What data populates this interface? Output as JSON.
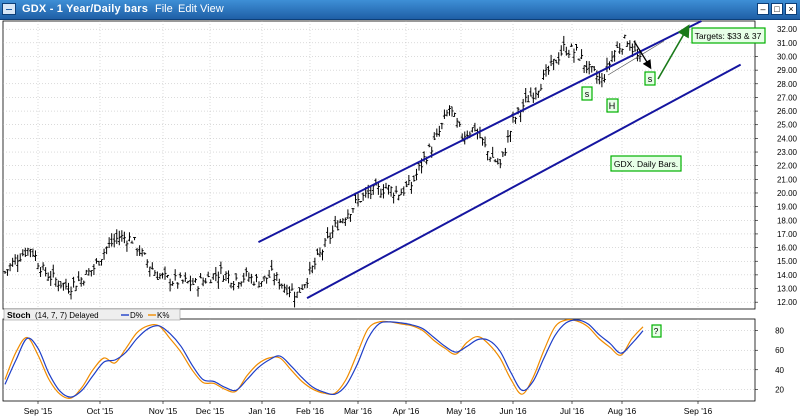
{
  "window": {
    "title": "GDX - 1 Year/Daily bars",
    "menu": {
      "file": "File",
      "edit": "Edit",
      "view": "View"
    }
  },
  "stoch_header": {
    "name": "Stoch",
    "params": "(14, 7, 7) Delayed",
    "d_label": "D%",
    "k_label": "K%",
    "d_color": "#1f3fc8",
    "k_color": "#f08c00"
  },
  "annotations": {
    "targets": "Targets: $33 & 37",
    "gdx_daily": "GDX. Daily Bars.",
    "s": "s",
    "h": "H",
    "q": "?"
  },
  "colors": {
    "channel": "#1515a0",
    "arrow": "#1a7a1a",
    "box_border": "#00b000",
    "box_fill": "#e7ffe7",
    "bars": "#000000",
    "grid": "#b7b7b7"
  },
  "chart_data": [
    {
      "type": "ohlc",
      "title": "GDX - 1 Year/Daily bars",
      "x_start_date": "2015-08-20",
      "xticks": [
        "Sep '15",
        "Oct '15",
        "Nov '15",
        "Dec '15",
        "Jan '16",
        "Feb '16",
        "Mar '16",
        "Apr '16",
        "May '16",
        "Jun '16",
        "Jul '16",
        "Aug '16",
        "Sep '16"
      ],
      "ylim": [
        11.5,
        32.6
      ],
      "yticks": [
        "12.00",
        "13.00",
        "14.00",
        "15.00",
        "16.00",
        "17.00",
        "18.00",
        "19.00",
        "20.00",
        "21.00",
        "22.00",
        "23.00",
        "24.00",
        "25.00",
        "26.00",
        "27.00",
        "28.00",
        "29.00",
        "30.00",
        "31.00",
        "32.00"
      ],
      "grid": true,
      "close_series_weekly": [
        14.2,
        15.3,
        16.0,
        14.3,
        13.6,
        13.1,
        13.7,
        14.5,
        16.0,
        16.8,
        16.6,
        15.2,
        14.0,
        13.6,
        13.5,
        13.3,
        13.8,
        14.2,
        13.7,
        13.9,
        13.5,
        14.0,
        13.2,
        12.6,
        14.1,
        15.8,
        17.5,
        18.6,
        19.6,
        20.1,
        20.4,
        20.0,
        20.6,
        22.5,
        24.0,
        26.2,
        24.2,
        24.8,
        23.0,
        22.0,
        25.2,
        26.7,
        27.8,
        29.2,
        30.6,
        30.3,
        29.0,
        28.2,
        30.4,
        31.3,
        29.6
      ],
      "channel_upper_ends": [
        [
          "2016-01-01",
          16.4
        ],
        [
          "2016-08-25",
          32.6
        ]
      ],
      "channel_lower_ends": [
        [
          "2016-01-27",
          12.3
        ],
        [
          "2016-09-15",
          29.4
        ]
      ],
      "target_arrow": [
        [
          "2016-08-27",
          29.3
        ],
        [
          "2016-09-10",
          32.8
        ]
      ]
    },
    {
      "type": "line",
      "title": "Stoch (14, 7, 7) Delayed",
      "ylim": [
        8,
        92
      ],
      "yticks": [
        "20",
        "40",
        "60",
        "80"
      ],
      "grid": true,
      "series": [
        {
          "name": "D%",
          "color": "#1f3fc8",
          "values": [
            25,
            50,
            72,
            62,
            36,
            18,
            12,
            19,
            34,
            48,
            50,
            58,
            72,
            82,
            85,
            77,
            64,
            45,
            30,
            28,
            22,
            19,
            30,
            42,
            50,
            54,
            44,
            32,
            22,
            17,
            15,
            24,
            45,
            72,
            87,
            89,
            88,
            86,
            82,
            73,
            64,
            58,
            64,
            71,
            70,
            59,
            37,
            19,
            28,
            52,
            75,
            88,
            91,
            87,
            76,
            67,
            57,
            67,
            80
          ]
        },
        {
          "name": "K%",
          "color": "#f08c00",
          "values": [
            30,
            58,
            73,
            55,
            30,
            15,
            11,
            22,
            40,
            52,
            47,
            62,
            78,
            85,
            85,
            72,
            58,
            40,
            27,
            26,
            20,
            18,
            34,
            46,
            52,
            52,
            40,
            28,
            20,
            16,
            16,
            30,
            56,
            82,
            89,
            89,
            87,
            85,
            80,
            70,
            62,
            56,
            68,
            74,
            66,
            52,
            30,
            15,
            32,
            60,
            84,
            91,
            90,
            84,
            72,
            63,
            55,
            72,
            84
          ]
        }
      ]
    }
  ],
  "axis": {
    "price_ticks": [
      "12.00",
      "13.00",
      "14.00",
      "15.00",
      "16.00",
      "17.00",
      "18.00",
      "19.00",
      "20.00",
      "21.00",
      "22.00",
      "23.00",
      "24.00",
      "25.00",
      "26.00",
      "27.00",
      "28.00",
      "29.00",
      "30.00",
      "31.00",
      "32.00"
    ],
    "stoch_ticks": [
      "20",
      "40",
      "60",
      "80"
    ],
    "months": [
      "Sep '15",
      "Oct '15",
      "Nov '15",
      "Dec '15",
      "Jan '16",
      "Feb '16",
      "Mar '16",
      "Apr '16",
      "May '16",
      "Jun '16",
      "Jul '16",
      "Aug '16",
      "Sep '16"
    ]
  }
}
